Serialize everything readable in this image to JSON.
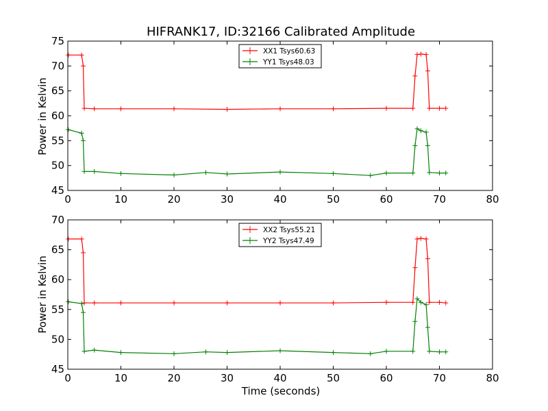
{
  "chart_data": [
    {
      "type": "line",
      "title": "HIFRANK17, ID:32166 Calibrated Amplitude",
      "xlabel": "",
      "ylabel": "Power in Kelvin",
      "xlim": [
        0,
        80
      ],
      "ylim": [
        45,
        75
      ],
      "xticks": [
        "0",
        "10",
        "20",
        "30",
        "40",
        "50",
        "60",
        "70",
        "80"
      ],
      "yticks": [
        "45",
        "50",
        "55",
        "60",
        "65",
        "70",
        "75"
      ],
      "grid": false,
      "legend": "top-center",
      "series": [
        {
          "name": "XX1 Tsys60.63",
          "color": "#ff0000",
          "x": [
            0.1,
            2.6,
            2.9,
            3.1,
            5,
            10,
            20,
            30,
            40,
            50,
            60,
            65.0,
            65.4,
            65.8,
            66.5,
            67.5,
            67.8,
            68.1,
            70,
            71.2
          ],
          "y": [
            72.2,
            72.2,
            70.0,
            61.5,
            61.4,
            61.4,
            61.4,
            61.3,
            61.4,
            61.4,
            61.5,
            61.5,
            68.0,
            72.3,
            72.4,
            72.3,
            69.0,
            61.5,
            61.5,
            61.5
          ]
        },
        {
          "name": "YY1 Tsys48.03",
          "color": "#008000",
          "x": [
            0.1,
            2.6,
            2.9,
            3.1,
            5,
            10,
            20,
            26,
            30,
            40,
            50,
            57,
            60,
            65.0,
            65.4,
            65.8,
            66.5,
            67.5,
            67.8,
            68.1,
            70,
            71.2
          ],
          "y": [
            57.2,
            56.5,
            55.0,
            48.8,
            48.8,
            48.4,
            48.1,
            48.6,
            48.3,
            48.7,
            48.4,
            48.0,
            48.5,
            48.5,
            54.0,
            57.4,
            57.0,
            56.7,
            54.0,
            48.6,
            48.5,
            48.5
          ]
        }
      ]
    },
    {
      "type": "line",
      "title": "",
      "xlabel": "Time (seconds)",
      "ylabel": "Power in Kelvin",
      "xlim": [
        0,
        80
      ],
      "ylim": [
        45,
        70
      ],
      "xticks": [
        "0",
        "10",
        "20",
        "30",
        "40",
        "50",
        "60",
        "70",
        "80"
      ],
      "yticks": [
        "45",
        "50",
        "55",
        "60",
        "65",
        "70"
      ],
      "grid": false,
      "legend": "top-center",
      "series": [
        {
          "name": "XX2 Tsys55.21",
          "color": "#ff0000",
          "x": [
            0.1,
            2.6,
            2.9,
            3.1,
            5,
            10,
            20,
            30,
            40,
            50,
            60,
            65.0,
            65.4,
            65.8,
            66.5,
            67.5,
            67.8,
            68.1,
            70,
            71.2
          ],
          "y": [
            66.8,
            66.8,
            64.5,
            56.1,
            56.1,
            56.1,
            56.1,
            56.1,
            56.1,
            56.1,
            56.2,
            56.2,
            62.0,
            66.8,
            66.9,
            66.8,
            63.5,
            56.2,
            56.2,
            56.1
          ]
        },
        {
          "name": "YY2 Tsys47.49",
          "color": "#008000",
          "x": [
            0.1,
            2.6,
            2.9,
            3.1,
            5,
            10,
            20,
            26,
            30,
            40,
            50,
            57,
            60,
            65.0,
            65.4,
            65.8,
            66.5,
            67.5,
            67.8,
            68.1,
            70,
            71.2
          ],
          "y": [
            56.3,
            56.0,
            54.5,
            48.0,
            48.2,
            47.8,
            47.6,
            47.9,
            47.8,
            48.1,
            47.8,
            47.6,
            48.0,
            48.0,
            53.0,
            56.8,
            56.2,
            55.8,
            52.0,
            48.0,
            47.9,
            47.9
          ]
        }
      ]
    }
  ]
}
